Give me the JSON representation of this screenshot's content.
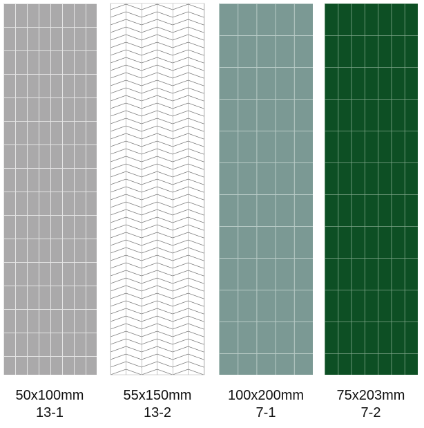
{
  "panels": [
    {
      "size": "50x100mm",
      "code": "13-1"
    },
    {
      "size": "55x150mm",
      "code": "13-2"
    },
    {
      "size": "100x200mm",
      "code": "7-1"
    },
    {
      "size": "75x203mm",
      "code": "7-2"
    }
  ]
}
